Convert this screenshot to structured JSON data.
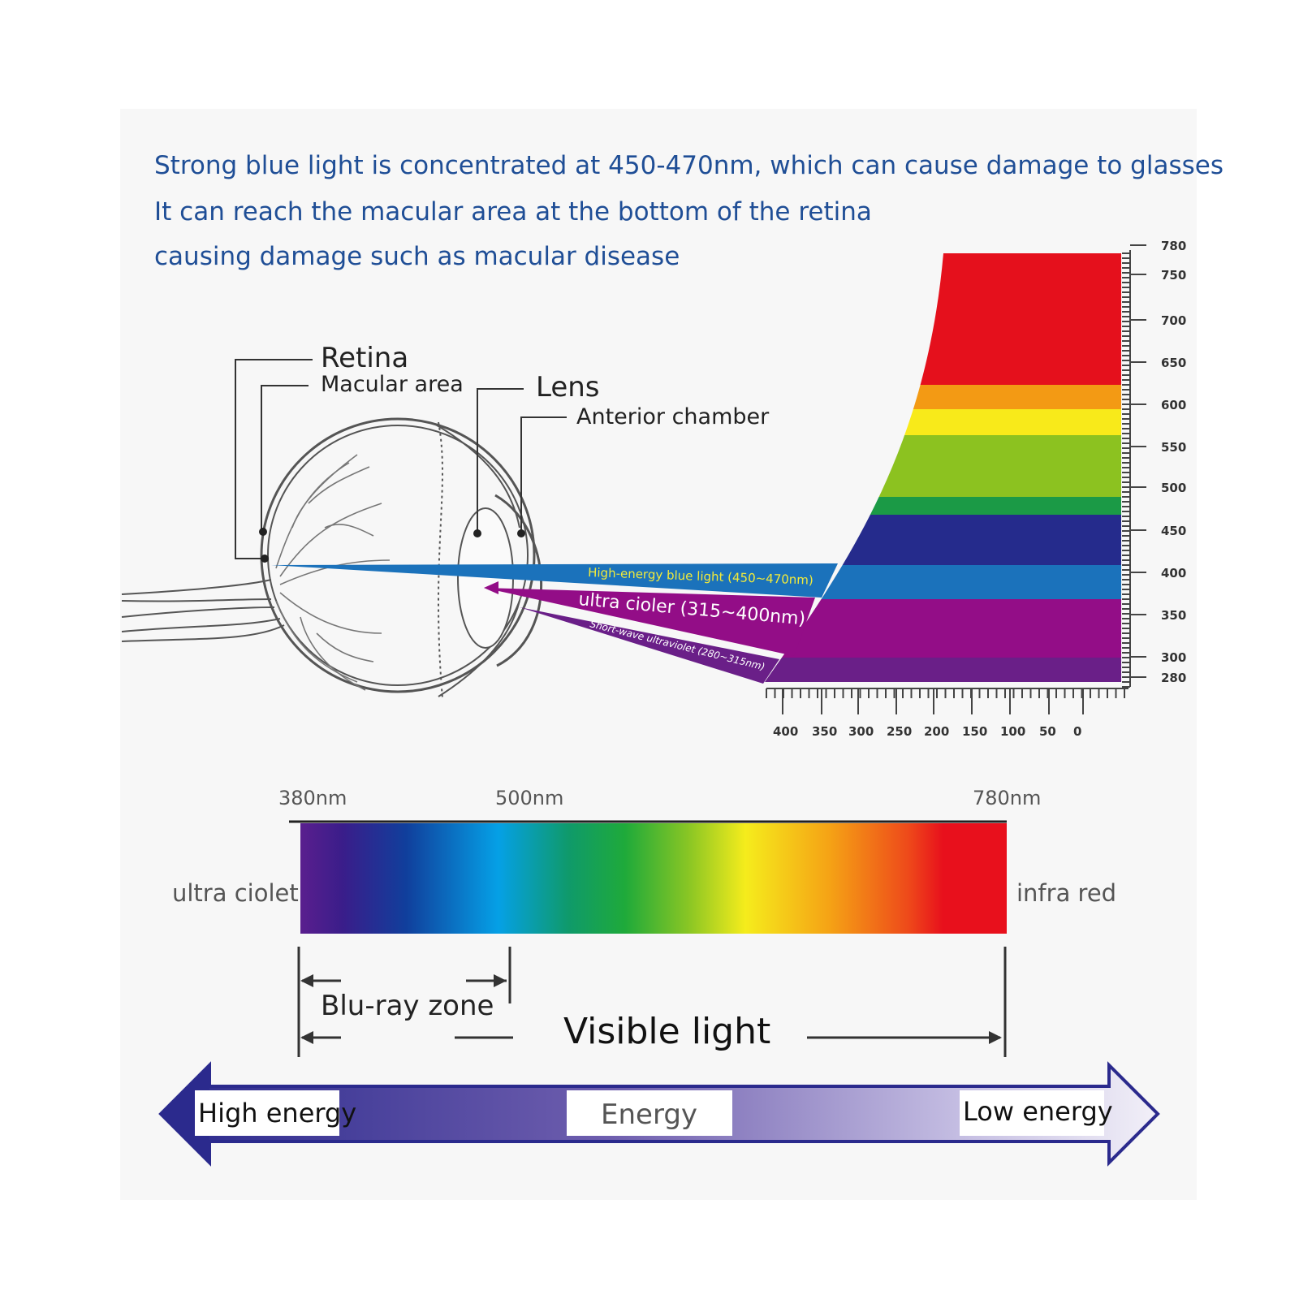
{
  "heading": {
    "line1": "Strong blue light is concentrated at 450-470nm, which can cause damage to glasses",
    "line2": "It can reach the macular area at the bottom of the retina",
    "line3": "causing damage such as macular disease"
  },
  "eye_labels": {
    "retina": "Retina",
    "macular_area": "Macular area",
    "lens": "Lens",
    "anterior_chamber": "Anterior chamber"
  },
  "beams": {
    "blue": "High-energy blue light (450~470nm)",
    "uva": "ultra cioler (315~400nm)",
    "uvb": "Short-wave ultraviolet (280~315nm)"
  },
  "wavelength_scale": [
    "780",
    "750",
    "700",
    "650",
    "600",
    "550",
    "500",
    "450",
    "400",
    "350",
    "300",
    "280"
  ],
  "energy_scale": [
    "400",
    "350",
    "300",
    "250",
    "200",
    "150",
    "100",
    "50",
    "0"
  ],
  "spectrum": {
    "label_380": "380nm",
    "label_500": "500nm",
    "label_780": "780nm",
    "left_label": "ultra ciolet",
    "right_label": "infra red",
    "blu_ray_zone": "Blu-ray zone",
    "visible_light": "Visible light"
  },
  "energy_bar": {
    "high": "High energy",
    "mid": "Energy",
    "low": "Low energy"
  },
  "colors": {
    "heading_blue": "#1f4e96",
    "red": "#e5101c",
    "orange": "#f39a14",
    "yellow": "#f8ea1a",
    "green": "#8cc220",
    "dark_green": "#1b9a46",
    "navy": "#252b8c",
    "blue": "#1b72bb",
    "purple": "#930d87",
    "violet": "#6a1f88"
  }
}
